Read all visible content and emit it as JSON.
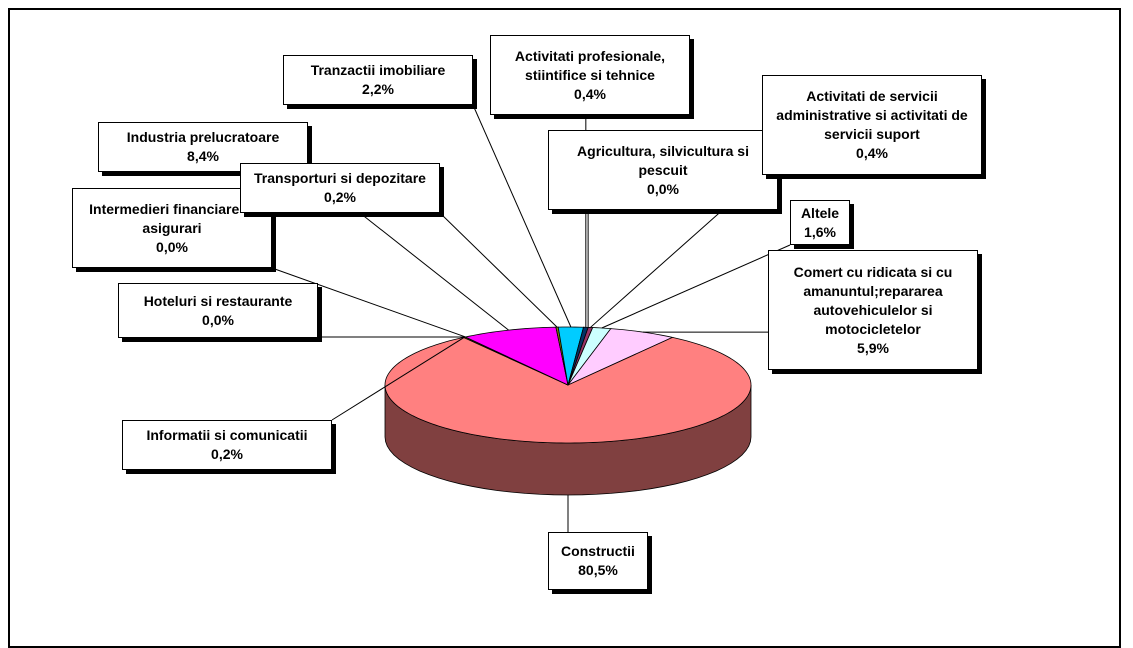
{
  "chart_data": {
    "type": "pie",
    "categories": [
      "Agricultura, silvicultura si pescuit",
      "Activitati de servicii administrative si activitati de servicii suport",
      "Altele",
      "Comert cu ridicata si cu amanuntul;repararea autovehiculelor si motocicletelor",
      "Constructii",
      "Informatii si comunicatii",
      "Hoteluri si restaurante",
      "Intermedieri financiare si asigurari",
      "Industria prelucratoare",
      "Transporturi si depozitare",
      "Tranzactii imobiliare",
      "Activitati profesionale, stiintifice si tehnice"
    ],
    "values": [
      0.0,
      0.4,
      1.6,
      5.9,
      80.5,
      0.2,
      0.0,
      0.0,
      8.4,
      0.2,
      2.2,
      0.4
    ],
    "value_labels": [
      "0,0%",
      "0,4%",
      "1,6%",
      "5,9%",
      "80,5%",
      "0,2%",
      "0,0%",
      "0,0%",
      "8,4%",
      "0,2%",
      "2,2%",
      "0,4%"
    ],
    "colors": [
      "#ffffcc",
      "#993366",
      "#ccffff",
      "#ffccff",
      "#ff8080",
      "#808000",
      "#808080",
      "#666699",
      "#ff00ff",
      "#808000",
      "#00ccff",
      "#003366"
    ]
  }
}
